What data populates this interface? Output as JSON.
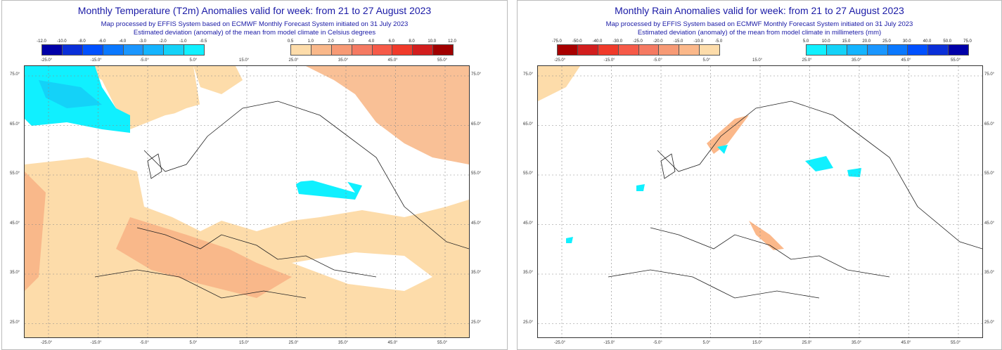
{
  "temperature": {
    "title": "Monthly Temperature (T2m) Anomalies valid for week: from 21 to 27 August 2023",
    "subtitle1": "Map processed by EFFIS System based on ECMWF Monthly Forecast System initiated on 31 July 2023",
    "subtitle2": "Estimated deviation (anomaly) of the mean from model climate in Celsius degrees",
    "neg_labels": [
      "-12.0",
      "-10.0",
      "-8.0",
      "-6.0",
      "-4.0",
      "-3.0",
      "-2.0",
      "-1.0",
      "-0.5"
    ],
    "neg_colors": [
      "#0000a8",
      "#0a2fd8",
      "#0050ff",
      "#0a78ff",
      "#1a96ff",
      "#14b4ff",
      "#14d2f8",
      "#10f0ff"
    ],
    "pos_labels": [
      "0.5",
      "1.0",
      "2.0",
      "3.0",
      "4.0",
      "6.0",
      "8.0",
      "10.0",
      "12.0"
    ],
    "pos_colors": [
      "#fddcaa",
      "#f9b88a",
      "#f79a75",
      "#f57a62",
      "#f65a48",
      "#f03a2a",
      "#d21e1e",
      "#a00000"
    ]
  },
  "rain": {
    "title": "Monthly Rain Anomalies valid for week: from 21 to 27 August 2023",
    "subtitle1": "Map processed by EFFIS System based on ECMWF Monthly Forecast System initiated on 31 July 2023",
    "subtitle2": "Estimated deviation (anomaly) of the mean from model climate in millimeters (mm)",
    "neg_labels": [
      "-75.0",
      "-50.0",
      "-40.0",
      "-30.0",
      "-25.0",
      "-20.0",
      "-15.0",
      "-10.0",
      "-5.0"
    ],
    "neg_colors": [
      "#a80000",
      "#d21e1e",
      "#f03a2a",
      "#f65a48",
      "#f57a62",
      "#f79a75",
      "#fbb88a",
      "#fddcaa"
    ],
    "pos_labels": [
      "5.0",
      "10.0",
      "15.0",
      "20.0",
      "25.0",
      "30.0",
      "40.0",
      "50.0",
      "75.0"
    ],
    "pos_colors": [
      "#10f0ff",
      "#14d2f8",
      "#14b4ff",
      "#1a96ff",
      "#0a78ff",
      "#0050ff",
      "#0a2fd8",
      "#0000a8"
    ]
  },
  "lon_labels": [
    "-25.0°",
    "-15.0°",
    "-5.0°",
    "5.0°",
    "15.0°",
    "25.0°",
    "35.0°",
    "45.0°",
    "55.0°"
  ],
  "lat_labels": [
    "75.0°",
    "65.0°",
    "55.0°",
    "45.0°",
    "35.0°",
    "25.0°"
  ]
}
